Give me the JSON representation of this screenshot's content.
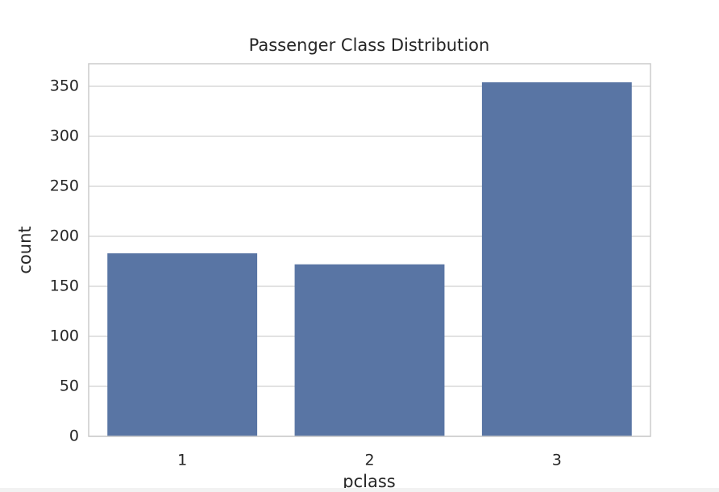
{
  "chart_data": {
    "type": "bar",
    "title": "Passenger Class Distribution",
    "x_label": "pclass",
    "y_label": "count",
    "categories": [
      "1",
      "2",
      "3"
    ],
    "values": [
      183,
      172,
      354
    ],
    "color": "#5975a4",
    "ylim": [
      0,
      372.6
    ],
    "yticks": [
      0,
      50,
      100,
      150,
      200,
      250,
      300,
      350
    ],
    "grid": true
  }
}
